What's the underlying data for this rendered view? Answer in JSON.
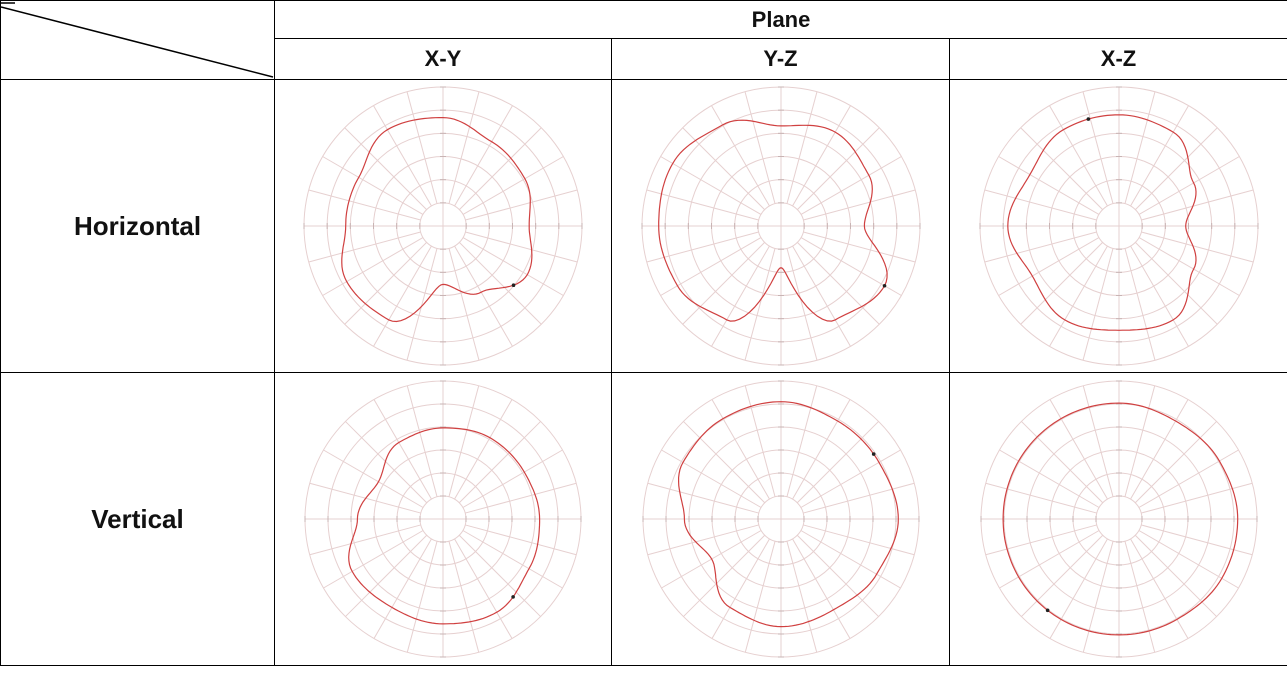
{
  "table": {
    "header": "Plane",
    "columns": [
      "X-Y",
      "Y-Z",
      "X-Z"
    ],
    "rows": [
      "Horizontal",
      "Vertical"
    ]
  },
  "colors": {
    "trace": "#d04040",
    "grid": "#e6d0d0",
    "marker": "#222222",
    "border": "#000000"
  },
  "chart_data": [
    {
      "type": "polar",
      "row": "Horizontal",
      "column": "X-Y",
      "r_by_angle_deg": [
        [
          0,
          0.62
        ],
        [
          30,
          0.68
        ],
        [
          60,
          0.7
        ],
        [
          90,
          0.78
        ],
        [
          120,
          0.8
        ],
        [
          150,
          0.7
        ],
        [
          180,
          0.7
        ],
        [
          210,
          0.8
        ],
        [
          240,
          0.78
        ],
        [
          270,
          0.42
        ],
        [
          300,
          0.55
        ],
        [
          330,
          0.7
        ],
        [
          360,
          0.62
        ]
      ],
      "marker_angle_deg": 320
    },
    {
      "type": "polar",
      "row": "Horizontal",
      "column": "Y-Z",
      "r_by_angle_deg": [
        [
          0,
          0.6
        ],
        [
          30,
          0.73
        ],
        [
          60,
          0.78
        ],
        [
          90,
          0.72
        ],
        [
          120,
          0.84
        ],
        [
          150,
          0.9
        ],
        [
          180,
          0.88
        ],
        [
          210,
          0.86
        ],
        [
          240,
          0.78
        ],
        [
          270,
          0.3
        ],
        [
          300,
          0.78
        ],
        [
          330,
          0.86
        ],
        [
          360,
          0.6
        ]
      ],
      "marker_angle_deg": 330
    },
    {
      "type": "polar",
      "row": "Horizontal",
      "column": "X-Z",
      "r_by_angle_deg": [
        [
          0,
          0.48
        ],
        [
          30,
          0.62
        ],
        [
          60,
          0.78
        ],
        [
          90,
          0.8
        ],
        [
          120,
          0.8
        ],
        [
          150,
          0.74
        ],
        [
          180,
          0.8
        ],
        [
          210,
          0.72
        ],
        [
          240,
          0.78
        ],
        [
          270,
          0.75
        ],
        [
          300,
          0.78
        ],
        [
          330,
          0.62
        ],
        [
          360,
          0.48
        ]
      ],
      "marker_angle_deg": 106
    },
    {
      "type": "polar",
      "row": "Vertical",
      "column": "X-Y",
      "r_by_angle_deg": [
        [
          0,
          0.7
        ],
        [
          30,
          0.68
        ],
        [
          60,
          0.68
        ],
        [
          90,
          0.66
        ],
        [
          120,
          0.64
        ],
        [
          150,
          0.54
        ],
        [
          180,
          0.62
        ],
        [
          210,
          0.76
        ],
        [
          240,
          0.74
        ],
        [
          270,
          0.76
        ],
        [
          300,
          0.78
        ],
        [
          330,
          0.72
        ],
        [
          360,
          0.7
        ]
      ],
      "marker_angle_deg": 312
    },
    {
      "type": "polar",
      "row": "Vertical",
      "column": "Y-Z",
      "r_by_angle_deg": [
        [
          0,
          0.85
        ],
        [
          30,
          0.82
        ],
        [
          60,
          0.82
        ],
        [
          90,
          0.85
        ],
        [
          120,
          0.84
        ],
        [
          150,
          0.82
        ],
        [
          180,
          0.7
        ],
        [
          210,
          0.58
        ],
        [
          240,
          0.74
        ],
        [
          270,
          0.78
        ],
        [
          300,
          0.76
        ],
        [
          330,
          0.8
        ],
        [
          360,
          0.85
        ]
      ],
      "marker_angle_deg": 35
    },
    {
      "type": "polar",
      "row": "Vertical",
      "column": "X-Z",
      "r_by_angle_deg": [
        [
          0,
          0.86
        ],
        [
          30,
          0.84
        ],
        [
          60,
          0.82
        ],
        [
          90,
          0.84
        ],
        [
          120,
          0.84
        ],
        [
          150,
          0.84
        ],
        [
          180,
          0.84
        ],
        [
          210,
          0.84
        ],
        [
          240,
          0.84
        ],
        [
          270,
          0.84
        ],
        [
          300,
          0.84
        ],
        [
          330,
          0.86
        ],
        [
          360,
          0.86
        ]
      ],
      "marker_angle_deg": 232
    }
  ]
}
